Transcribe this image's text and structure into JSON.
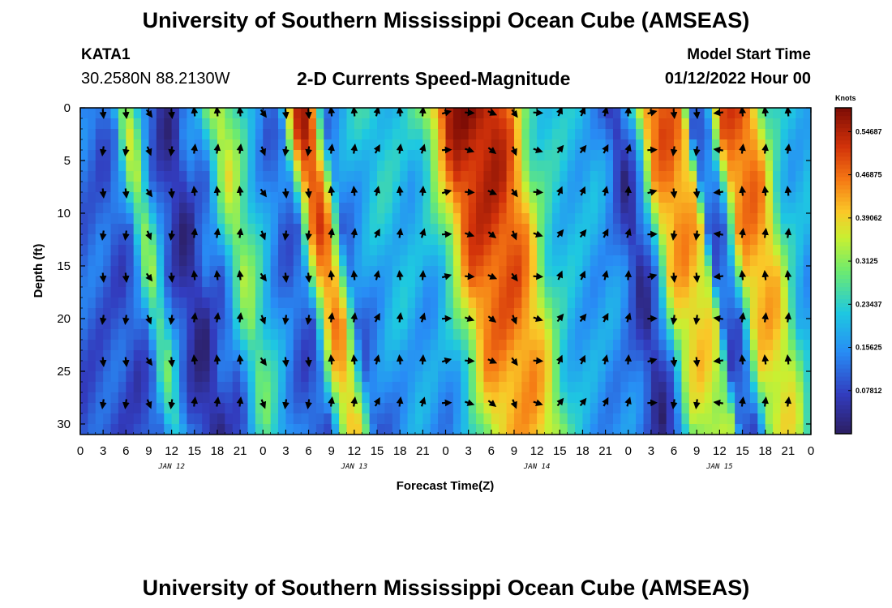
{
  "header": {
    "title_top": "University of Southern Mississippi Ocean Cube (AMSEAS)",
    "title_bottom": "University of Southern Mississippi Ocean Cube (AMSEAS)",
    "station_id": "KATA1",
    "station_coords": "30.2580N  88.2130W",
    "plot_title": "2-D Currents Speed-Magnitude",
    "model_label": "Model Start Time",
    "model_time": "01/12/2022 Hour 00"
  },
  "chart_data": {
    "type": "heatmap",
    "title": "2-D Currents Speed-Magnitude",
    "xlabel": "Forecast Time(Z)",
    "ylabel": "Depth (ft)",
    "xlim": [
      0,
      96
    ],
    "ylim": [
      0,
      31
    ],
    "x_tick_labels": [
      "0",
      "3",
      "6",
      "9",
      "12",
      "15",
      "18",
      "21",
      "0",
      "3",
      "6",
      "9",
      "12",
      "15",
      "18",
      "21",
      "0",
      "3",
      "6",
      "9",
      "12",
      "15",
      "18",
      "21",
      "0",
      "3",
      "6",
      "9",
      "12",
      "15",
      "18",
      "21",
      "0"
    ],
    "day_labels": [
      {
        "label": "JAN 12",
        "hour": 12
      },
      {
        "label": "JAN 13",
        "hour": 36
      },
      {
        "label": "JAN 14",
        "hour": 60
      },
      {
        "label": "JAN 15",
        "hour": 84
      }
    ],
    "y_ticks": [
      0,
      5,
      10,
      15,
      20,
      25,
      30
    ],
    "colorbar": {
      "title": "Knots",
      "min": 0.0,
      "max": 0.59,
      "tick_values": [
        0.07812,
        0.15625,
        0.23437,
        0.3125,
        0.39062,
        0.46875,
        0.54687
      ],
      "tick_labels": [
        "0.07812",
        "0.15625",
        "0.23437",
        "0.3125",
        "0.39062",
        "0.46875",
        "0.54687"
      ]
    },
    "surface_speed_profile": {
      "hours": [
        0,
        2,
        4,
        5,
        6,
        8,
        10,
        11,
        12,
        13,
        15,
        17,
        18,
        20,
        22,
        24,
        26,
        27,
        28,
        29,
        30,
        32,
        34,
        35,
        36,
        38,
        40,
        42,
        44,
        46,
        48,
        50,
        52,
        54,
        56,
        58,
        60,
        62,
        64,
        66,
        68,
        70,
        72,
        74,
        76,
        78,
        79,
        80,
        82,
        84,
        86,
        87,
        88,
        90,
        92,
        94,
        96
      ],
      "knots": [
        0.13,
        0.1,
        0.15,
        0.3,
        0.36,
        0.14,
        0.06,
        0.04,
        0.06,
        0.13,
        0.14,
        0.32,
        0.38,
        0.28,
        0.18,
        0.12,
        0.14,
        0.33,
        0.5,
        0.55,
        0.5,
        0.14,
        0.18,
        0.2,
        0.22,
        0.24,
        0.22,
        0.2,
        0.25,
        0.38,
        0.55,
        0.57,
        0.57,
        0.56,
        0.48,
        0.3,
        0.24,
        0.22,
        0.2,
        0.2,
        0.15,
        0.04,
        0.16,
        0.45,
        0.5,
        0.46,
        0.42,
        0.12,
        0.14,
        0.48,
        0.5,
        0.49,
        0.46,
        0.26,
        0.2,
        0.2,
        0.2
      ]
    },
    "arrow_depths_ft": [
      0,
      4,
      8,
      12,
      16,
      20,
      24,
      28
    ],
    "arrow_hours": [
      3,
      6,
      9,
      12,
      15,
      18,
      21,
      24,
      27,
      30,
      33,
      36,
      39,
      42,
      45,
      48,
      51,
      54,
      57,
      60,
      63,
      66,
      69,
      72,
      75,
      78,
      81,
      84,
      87,
      90,
      93
    ],
    "arrow_directions_deg": [
      180,
      180,
      150,
      180,
      0,
      0,
      0,
      150,
      180,
      180,
      0,
      0,
      20,
      0,
      10,
      80,
      100,
      120,
      150,
      100,
      30,
      30,
      20,
      10,
      80,
      180,
      180,
      270,
      0,
      0,
      0
    ]
  }
}
